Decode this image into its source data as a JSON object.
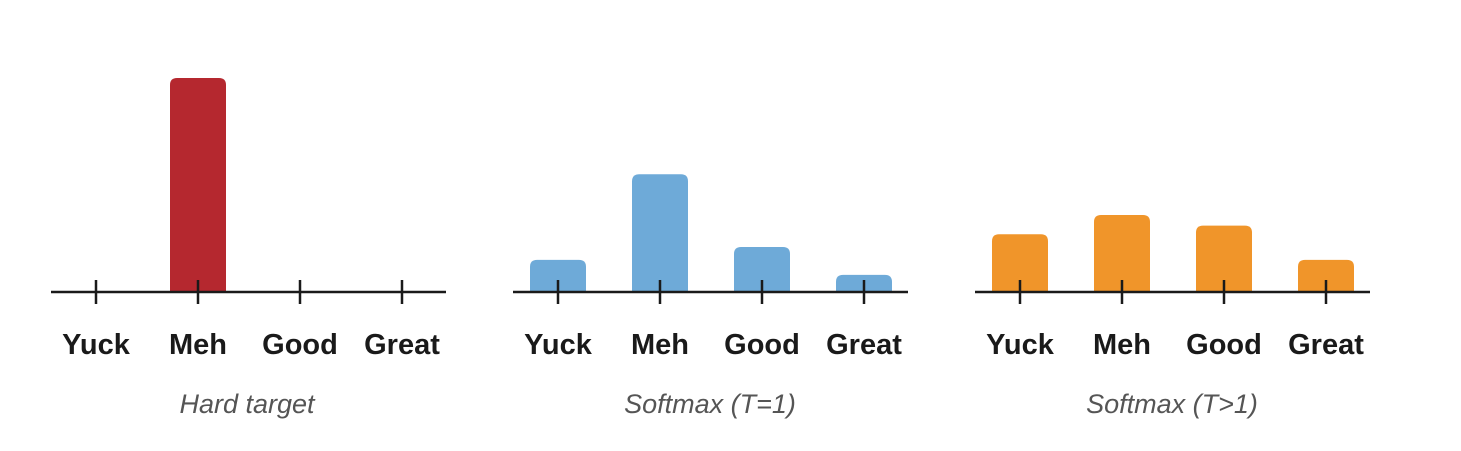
{
  "chart_data": [
    {
      "type": "bar",
      "title": "Hard target",
      "categories": [
        "Yuck",
        "Meh",
        "Good",
        "Great"
      ],
      "values": [
        0,
        1,
        0,
        0
      ],
      "ylim": [
        0,
        1
      ],
      "grid": false,
      "bar_color": "#b5282f"
    },
    {
      "type": "bar",
      "title": "Softmax (T=1)",
      "categories": [
        "Yuck",
        "Meh",
        "Good",
        "Great"
      ],
      "values": [
        0.15,
        0.55,
        0.21,
        0.08
      ],
      "ylim": [
        0,
        1
      ],
      "grid": false,
      "bar_color": "#6eaad8"
    },
    {
      "type": "bar",
      "title": "Softmax (T>1)",
      "categories": [
        "Yuck",
        "Meh",
        "Good",
        "Great"
      ],
      "values": [
        0.27,
        0.36,
        0.31,
        0.15
      ],
      "ylim": [
        0,
        1
      ],
      "grid": false,
      "bar_color": "#f0952a"
    }
  ]
}
